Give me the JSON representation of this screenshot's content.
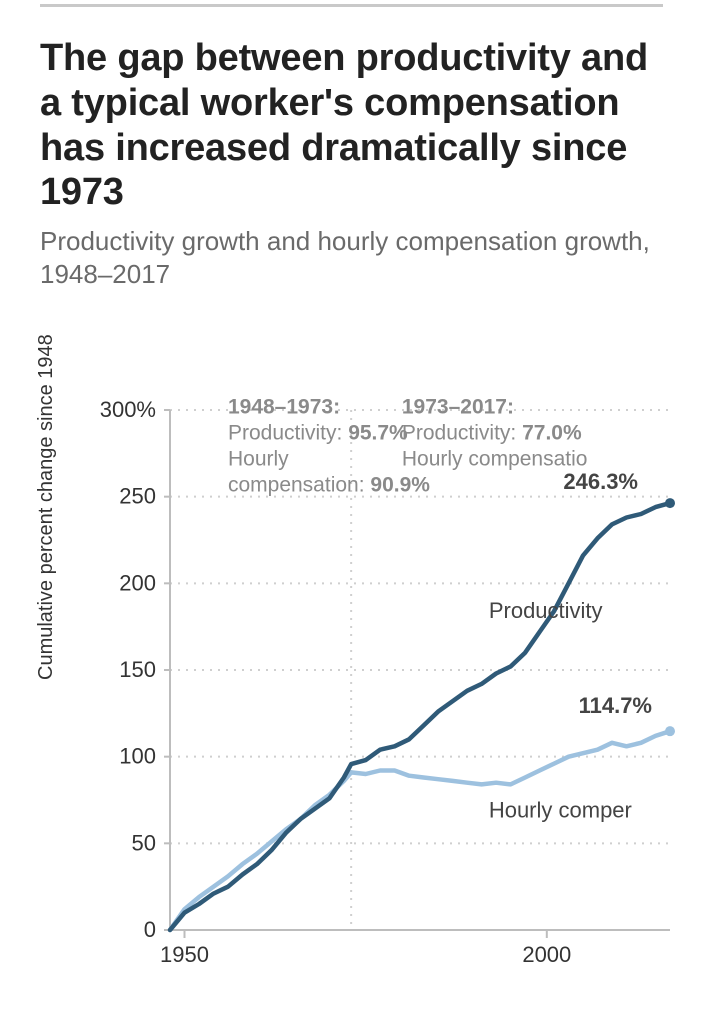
{
  "header": {
    "title": "The gap between productivity and a typical worker's compensation has increased dramatically since 1973",
    "subtitle": "Productivity growth and hourly compensation growth, 1948–2017"
  },
  "chart": {
    "type": "line",
    "yaxis_title": "Cumulative percent change since 1948",
    "xlim": [
      1948,
      2017
    ],
    "ylim": [
      0,
      300
    ],
    "yticks": [
      0,
      50,
      100,
      150,
      200,
      250,
      300
    ],
    "ytick_labels": [
      "0",
      "50",
      "100",
      "150",
      "200",
      "250",
      "300%"
    ],
    "xticks": [
      1950,
      2000
    ],
    "xtick_labels": [
      "1950",
      "2000"
    ],
    "vline_year": 1973,
    "background_color": "#ffffff",
    "grid_color": "#cfcfcf",
    "axis_color": "#bdbdbd",
    "productivity": {
      "label": "Productivity",
      "color": "#2f5a78",
      "end_label": "246.3%",
      "years": [
        1948,
        1950,
        1952,
        1954,
        1956,
        1958,
        1960,
        1962,
        1964,
        1966,
        1968,
        1970,
        1972,
        1973,
        1975,
        1977,
        1979,
        1981,
        1983,
        1985,
        1987,
        1989,
        1991,
        1993,
        1995,
        1997,
        1999,
        2001,
        2003,
        2005,
        2007,
        2009,
        2011,
        2013,
        2015,
        2017
      ],
      "values": [
        0,
        10,
        15,
        21,
        25,
        32,
        38,
        46,
        56,
        64,
        70,
        76,
        88,
        95.7,
        98,
        104,
        106,
        110,
        118,
        126,
        132,
        138,
        142,
        148,
        152,
        160,
        172,
        184,
        200,
        216,
        226,
        234,
        238,
        240,
        244,
        246.3
      ]
    },
    "compensation": {
      "label": "Hourly comper",
      "color": "#9dc1df",
      "end_label": "114.7%",
      "years": [
        1948,
        1950,
        1952,
        1954,
        1956,
        1958,
        1960,
        1962,
        1964,
        1966,
        1968,
        1970,
        1972,
        1973,
        1975,
        1977,
        1979,
        1981,
        1983,
        1985,
        1987,
        1989,
        1991,
        1993,
        1995,
        1997,
        1999,
        2001,
        2003,
        2005,
        2007,
        2009,
        2011,
        2013,
        2015,
        2017
      ],
      "values": [
        0,
        12,
        19,
        25,
        31,
        38,
        44,
        51,
        58,
        64,
        72,
        78,
        86,
        90.9,
        90,
        92,
        92,
        89,
        88,
        87,
        86,
        85,
        84,
        85,
        84,
        88,
        92,
        96,
        100,
        102,
        104,
        108,
        106,
        108,
        112,
        114.7
      ]
    },
    "endpoint_marker_radius": 5,
    "line_width": 4.5,
    "annotations": {
      "left": {
        "title": "1948–1973:",
        "line2_prefix": "Productivity:",
        "line2_value": "95.7%",
        "line3": "Hourly",
        "line4": "compensation:",
        "line4_value": "90.9%"
      },
      "right": {
        "title": "1973–2017:",
        "line2_prefix": "Productivity:",
        "line2_value": "77.0%",
        "line3": "Hourly compensatio",
        "line3_value": ""
      }
    },
    "label_fontsize": 22,
    "anno_fontsize": 21,
    "anno_color": "#8a8a8a"
  }
}
